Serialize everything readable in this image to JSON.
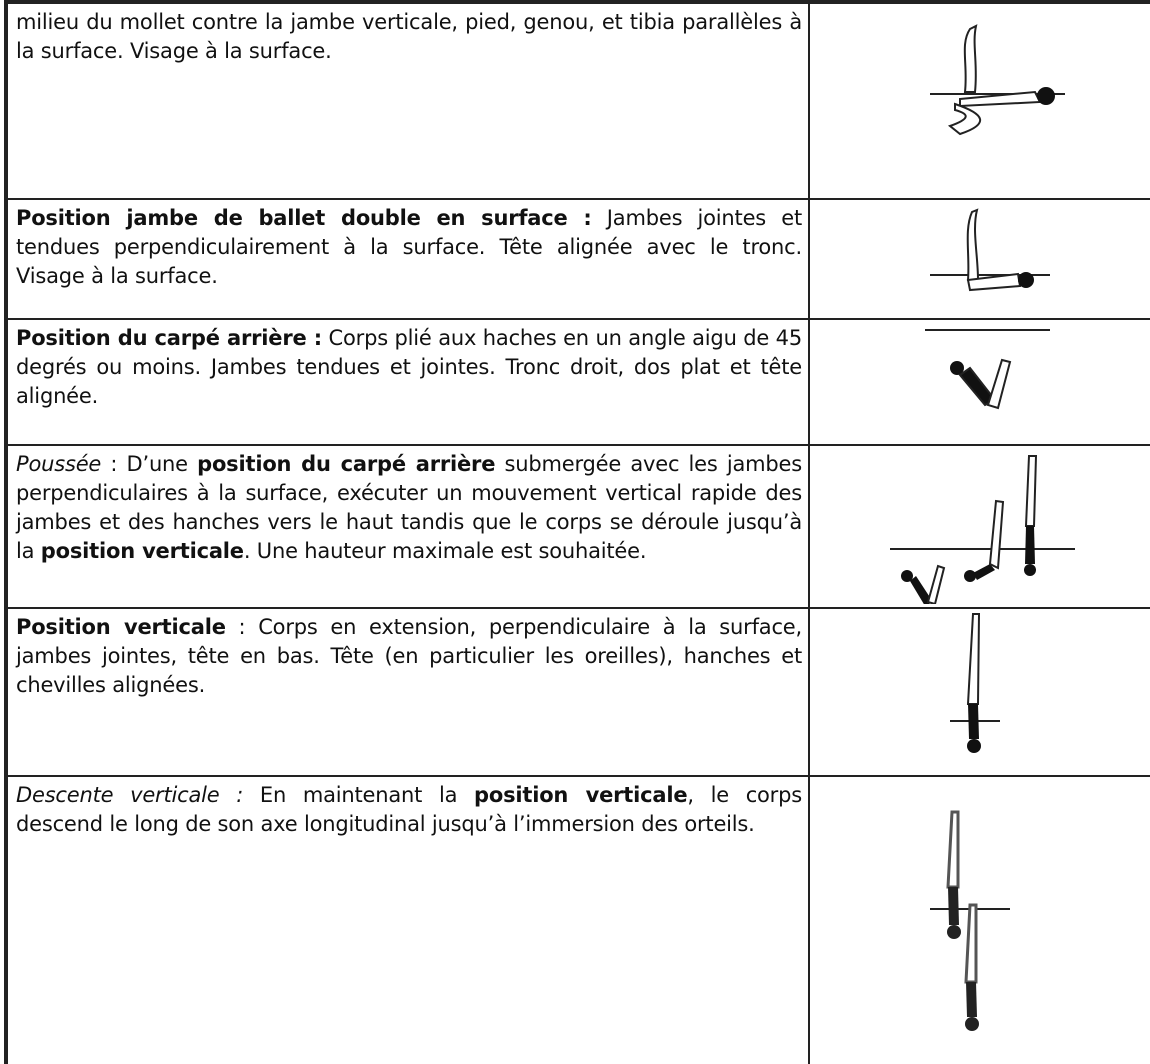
{
  "table": {
    "rows": [
      [
        "milieu du mollet contre la jambe verticale, pied, genou, et tibia parallèles à la surface. Visage à la surface."
      ],
      [
        "Position jambe de ballet double en surface :",
        " Jambes jointes et tendues perpendiculairement à la surface. Tête alignée avec le tronc. Visage à la surface."
      ],
      [
        "Position du carpé arrière :",
        " Corps plié aux haches en un angle aigu de 45 degrés ou moins. Jambes tendues et jointes. Tronc droit, dos plat et tête alignée."
      ],
      [
        "Poussée",
        " : D’une ",
        "position du carpé arrière",
        " submergée avec les jambes perpendiculaires à la surface, exécuter un mouvement vertical rapide des jambes et des hanches vers le haut tandis que le corps se déroule jusqu’à la ",
        "position verticale",
        ". Une hauteur maximale est souhaitée."
      ],
      [
        "Position verticale",
        " : Corps en extension, perpendiculaire à la surface, jambes jointes, tête en bas. Tête (en particulier les oreilles), hanches et chevilles alignées."
      ],
      [
        "Descente verticale :",
        " En maintenant la ",
        "position verticale",
        ", le corps descend le long de son axe longitudinal jusqu’à l’immersion des orteils."
      ]
    ]
  }
}
